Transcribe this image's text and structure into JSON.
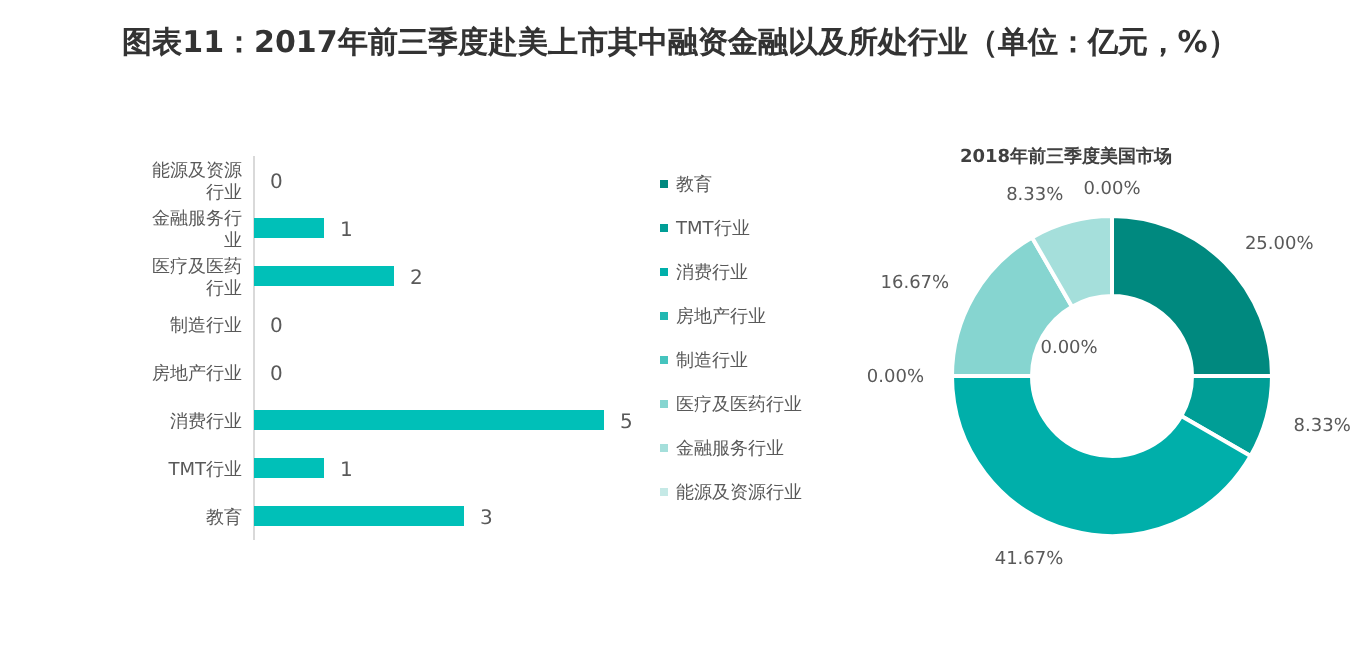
{
  "chart_data": [
    {
      "type": "bar",
      "title": "图表11：2017年前三季度赴美上市其中融资金融以及所处行业（单位：亿元，%）",
      "orientation": "horizontal",
      "categories": [
        "能源及资源行业",
        "金融服务行业",
        "医疗及医药行业",
        "制造行业",
        "房地产行业",
        "消费行业",
        "TMT行业",
        "教育"
      ],
      "values": [
        0,
        1,
        2,
        0,
        0,
        5,
        1,
        3
      ],
      "color": "#00c0b8",
      "data_labels": true
    },
    {
      "type": "donut",
      "title": "2018年前三季度美国市场",
      "legend": "left",
      "categories": [
        "教育",
        "TMT行业",
        "消费行业",
        "房地产行业",
        "制造行业",
        "医疗及医药行业",
        "金融服务行业",
        "能源及资源行业"
      ],
      "values": [
        25.0,
        8.33,
        41.67,
        0,
        0,
        16.67,
        8.33,
        0
      ],
      "value_labels": [
        "25.00%",
        "8.33%",
        "41.67%",
        "0.00%",
        "0.00%",
        "16.67%",
        "8.33%",
        "0.00%"
      ],
      "colors": [
        "#00897f",
        "#009e96",
        "#00afaa",
        "#22b8b2",
        "#45c4be",
        "#86d5d0",
        "#a5dfdb",
        "#c5e9e6"
      ]
    }
  ]
}
